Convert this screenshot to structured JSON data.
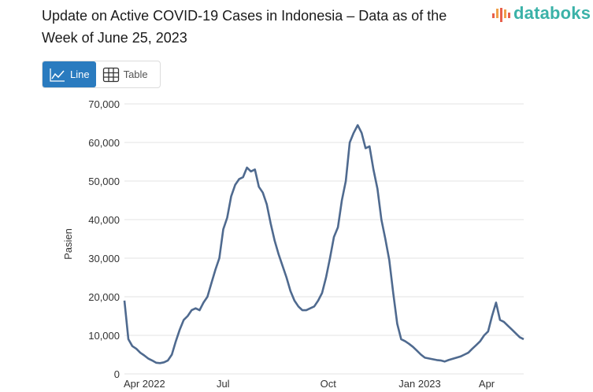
{
  "title": "Update on Active COVID-19 Cases in Indonesia – Data as of the Week of June 25, 2023",
  "logo": "databoks",
  "view_toggle": {
    "line_label": "Line",
    "table_label": "Table",
    "active": "Line"
  },
  "colors": {
    "line": "#4f6a8f",
    "accent": "#2a7bbf",
    "logo": "#3bb2a8",
    "grid": "#e3e3e3"
  },
  "chart_data": {
    "type": "line",
    "title": "Update on Active COVID-19 Cases in Indonesia – Data as of the Week of June 25, 2023",
    "xlabel": "",
    "ylabel": "Pasien",
    "ylim": [
      0,
      70000
    ],
    "yticks": [
      0,
      10000,
      20000,
      30000,
      40000,
      50000,
      60000,
      70000
    ],
    "ytick_labels": [
      "0",
      "10,000",
      "20,000",
      "30,000",
      "40,000",
      "50,000",
      "60,000",
      "70,000"
    ],
    "x_unit": "weeks since start",
    "xlim": [
      0,
      68
    ],
    "xticks": [
      {
        "x": 3.4,
        "label": "Apr 2022"
      },
      {
        "x": 16.8,
        "label": "Jul"
      },
      {
        "x": 34.7,
        "label": "Oct"
      },
      {
        "x": 50.3,
        "label": "Jan 2023"
      },
      {
        "x": 61.7,
        "label": "Apr"
      }
    ],
    "grid": true,
    "series": [
      {
        "name": "Pasien",
        "values": [
          19000,
          9000,
          7200,
          6500,
          5500,
          4800,
          4000,
          3500,
          2900,
          2800,
          3000,
          3500,
          5000,
          8500,
          11500,
          14000,
          15000,
          16500,
          17000,
          16500,
          18500,
          20000,
          23500,
          27000,
          30000,
          37500,
          40500,
          46000,
          49000,
          50500,
          51000,
          53500,
          52500,
          53000,
          48500,
          47000,
          44000,
          39000,
          34500,
          31000,
          28000,
          25000,
          21500,
          19000,
          17500,
          16500,
          16500,
          17000,
          17500,
          19000,
          21000,
          25000,
          30000,
          35500,
          38000,
          45000,
          50000,
          60000,
          62500,
          64500,
          62500,
          58500,
          59000,
          53000,
          48000,
          40000,
          35000,
          29500,
          21000,
          13000,
          9000,
          8500,
          7800,
          7000,
          6000,
          5000,
          4200,
          4000,
          3800,
          3600,
          3500,
          3200,
          3600,
          3900,
          4200,
          4500,
          5000,
          5500,
          6500,
          7500,
          8500,
          10000,
          11000,
          15000,
          18500,
          14000,
          13500,
          12500,
          11500,
          10500,
          9500,
          9000
        ]
      }
    ]
  }
}
